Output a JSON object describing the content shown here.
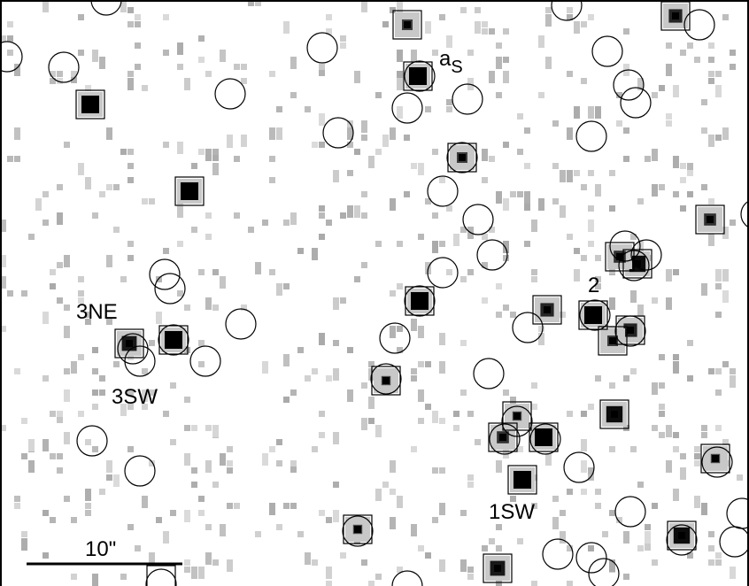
{
  "source_as": {
    "text": "a",
    "subscript": "S"
  },
  "labels": [
    "2",
    "3NE",
    "3SW",
    "1SW"
  ],
  "scale_bar": "10\""
}
